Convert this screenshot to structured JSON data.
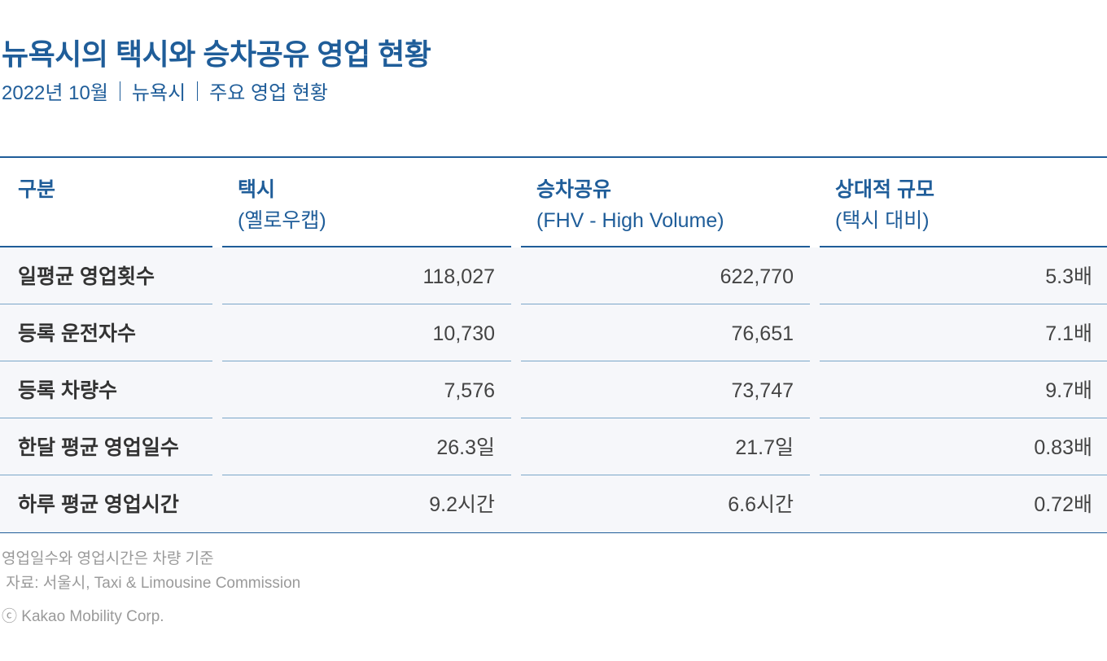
{
  "title": "뉴욕시의 택시와 승차공유 영업 현황",
  "subtitle": {
    "date": "2022년 10월",
    "city": "뉴욕시",
    "topic": "주요 영업 현황"
  },
  "table": {
    "headers": [
      {
        "main": "구분",
        "sub": ""
      },
      {
        "main": "택시",
        "sub": "(옐로우캡)"
      },
      {
        "main": "승차공유",
        "sub": "(FHV - High Volume)"
      },
      {
        "main": "상대적 규모",
        "sub": "(택시 대비)"
      }
    ],
    "rows": [
      {
        "label": "일평균 영업횟수",
        "taxi": "118,027",
        "rideshare": "622,770",
        "ratio": "5.3배"
      },
      {
        "label": "등록 운전자수",
        "taxi": "10,730",
        "rideshare": "76,651",
        "ratio": "7.1배"
      },
      {
        "label": "등록 차량수",
        "taxi": "7,576",
        "rideshare": "73,747",
        "ratio": "9.7배"
      },
      {
        "label": "한달 평균 영업일수",
        "taxi": "26.3일",
        "rideshare": "21.7일",
        "ratio": "0.83배"
      },
      {
        "label": "하루 평균 영업시간",
        "taxi": "9.2시간",
        "rideshare": "6.6시간",
        "ratio": "0.72배"
      }
    ]
  },
  "footnotes": {
    "note": "영업일수와 영업시간은 차량 기준",
    "source": " 자료: 서울시, Taxi & Limousine Commission",
    "copyright": "ⓒ Kakao Mobility Corp."
  },
  "colors": {
    "accent": "#1f5d99",
    "row_bg": "#f6f7fa",
    "divider": "#7aa6c8"
  }
}
